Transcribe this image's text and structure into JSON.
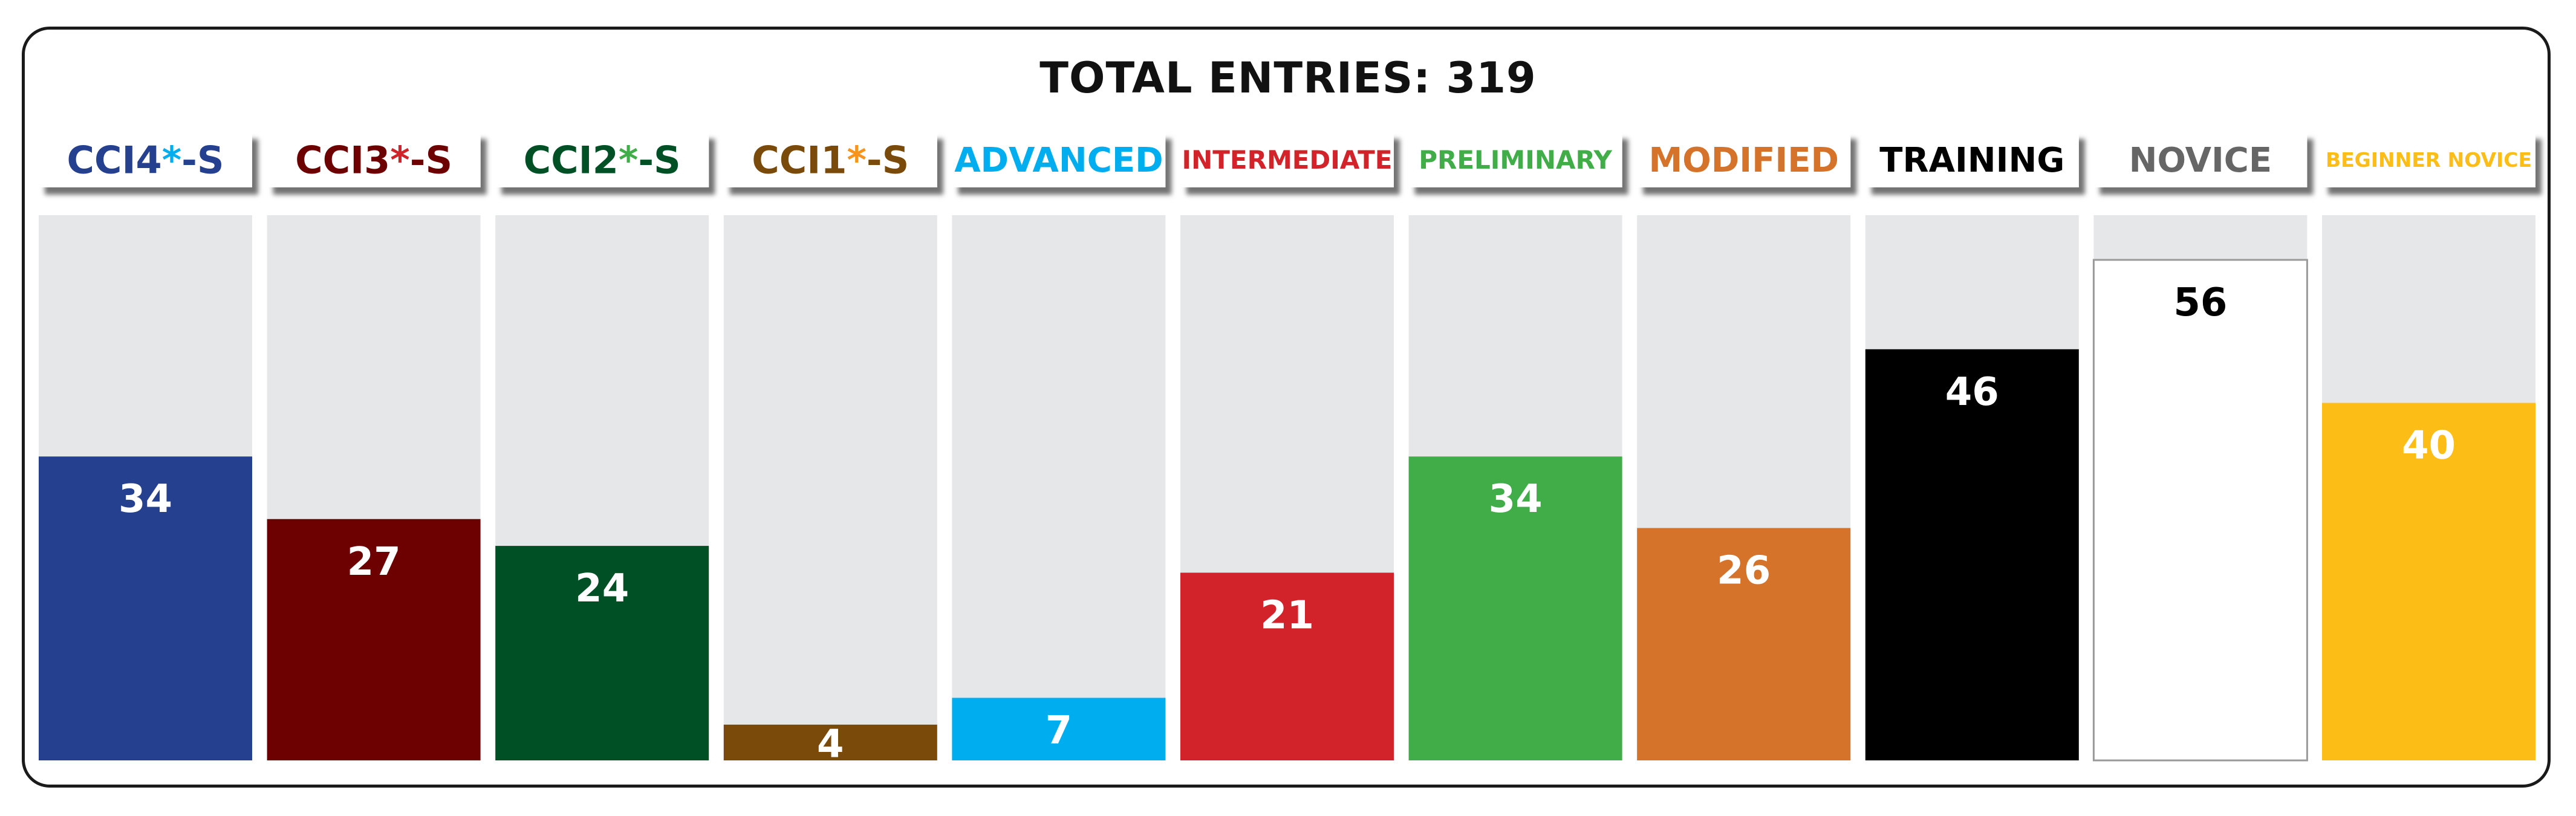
{
  "chart_data": {
    "type": "bar",
    "title_prefix": "TOTAL ENTRIES:",
    "title_value": "319",
    "ylim": [
      0,
      61
    ],
    "categories": [
      {
        "base": "CCI4",
        "star": "*",
        "suffix": "-S",
        "value": 34,
        "color": "#24408e",
        "header_color": "#24408e",
        "star_color": "#00aeef",
        "label_color": "#ffffff"
      },
      {
        "base": "CCI3",
        "star": "*",
        "suffix": "-S",
        "value": 27,
        "color": "#6d0000",
        "header_color": "#6d0000",
        "star_color": "#d2232a",
        "label_color": "#ffffff"
      },
      {
        "base": "CCI2",
        "star": "*",
        "suffix": "-S",
        "value": 24,
        "color": "#005026",
        "header_color": "#005026",
        "star_color": "#41ad49",
        "label_color": "#ffffff"
      },
      {
        "base": "CCI1",
        "star": "*",
        "suffix": "-S",
        "value": 4,
        "color": "#7a4a0a",
        "header_color": "#7a4a0a",
        "star_color": "#f7941d",
        "label_color": "#ffffff"
      },
      {
        "base": "ADVANCED",
        "star": "",
        "suffix": "",
        "value": 7,
        "color": "#00aeef",
        "header_color": "#00aeef",
        "star_color": "",
        "label_color": "#ffffff"
      },
      {
        "base": "INTERMEDIATE",
        "star": "",
        "suffix": "",
        "value": 21,
        "color": "#d2232a",
        "header_color": "#d2232a",
        "star_color": "",
        "label_color": "#ffffff"
      },
      {
        "base": "PRELIMINARY",
        "star": "",
        "suffix": "",
        "value": 34,
        "color": "#41ad49",
        "header_color": "#41ad49",
        "star_color": "",
        "label_color": "#ffffff"
      },
      {
        "base": "MODIFIED",
        "star": "",
        "suffix": "",
        "value": 26,
        "color": "#d5732b",
        "header_color": "#d5732b",
        "star_color": "",
        "label_color": "#ffffff"
      },
      {
        "base": "TRAINING",
        "star": "",
        "suffix": "",
        "value": 46,
        "color": "#000000",
        "header_color": "#000000",
        "star_color": "",
        "label_color": "#ffffff"
      },
      {
        "base": "NOVICE",
        "star": "",
        "suffix": "",
        "value": 56,
        "color": "#ffffff",
        "header_color": "#666666",
        "star_color": "",
        "label_color": "#000000"
      },
      {
        "base": "BEGINNER NOVICE",
        "star": "",
        "suffix": "",
        "value": 40,
        "color": "#fbbd16",
        "header_color": "#fbbd16",
        "star_color": "",
        "label_color": "#ffffff"
      }
    ],
    "track_color": "#e6e7e8",
    "grid": false,
    "legend": "none"
  }
}
